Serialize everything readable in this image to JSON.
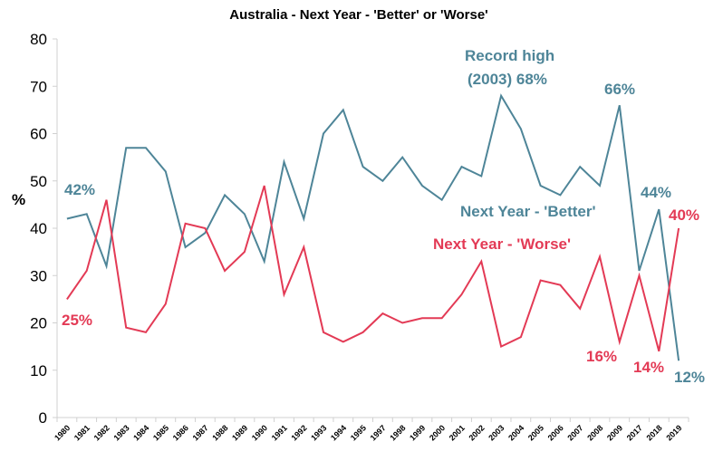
{
  "chart_data": {
    "type": "line",
    "title": "Australia - Next Year - 'Better' or 'Worse'",
    "xlabel": "",
    "ylabel": "%",
    "ylim": [
      0,
      80
    ],
    "yticks": [
      0,
      10,
      20,
      30,
      40,
      50,
      60,
      70,
      80
    ],
    "grid": false,
    "categories": [
      "1980",
      "1981",
      "1982",
      "1983",
      "1984",
      "1985",
      "1986",
      "1987",
      "1988",
      "1989",
      "1990",
      "1991",
      "1992",
      "1993",
      "1994",
      "1995",
      "1997",
      "1998",
      "1999",
      "2000",
      "2001",
      "2002",
      "2003",
      "2004",
      "2005",
      "2006",
      "2007",
      "2008",
      "2009",
      "2017",
      "2018",
      "2019"
    ],
    "series": [
      {
        "name": "Next Year - 'Better'",
        "color": "#4e8598",
        "values": [
          42,
          43,
          32,
          57,
          57,
          52,
          36,
          39,
          47,
          43,
          33,
          54,
          42,
          60,
          65,
          53,
          50,
          55,
          49,
          46,
          53,
          51,
          68,
          61,
          49,
          47,
          53,
          49,
          66,
          31,
          44,
          12
        ]
      },
      {
        "name": "Next Year - 'Worse'",
        "color": "#e33a55",
        "values": [
          25,
          31,
          46,
          19,
          18,
          24,
          41,
          40,
          31,
          35,
          49,
          26,
          36,
          18,
          16,
          18,
          22,
          20,
          21,
          21,
          26,
          33,
          15,
          17,
          29,
          28,
          23,
          34,
          16,
          30,
          14,
          40
        ]
      }
    ],
    "annotations": [
      {
        "text": "42%",
        "series": 0
      },
      {
        "text": "Record high",
        "series": 0
      },
      {
        "text": "(2003) 68%",
        "series": 0
      },
      {
        "text": "66%",
        "series": 0
      },
      {
        "text": "44%",
        "series": 0
      },
      {
        "text": "12%",
        "series": 0
      },
      {
        "text": "25%",
        "series": 1
      },
      {
        "text": "16%",
        "series": 1
      },
      {
        "text": "14%",
        "series": 1
      },
      {
        "text": "40%",
        "series": 1
      }
    ]
  }
}
